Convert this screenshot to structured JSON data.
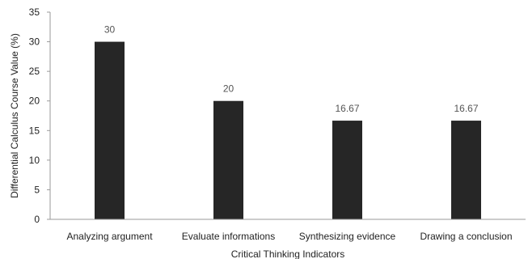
{
  "chart_data": {
    "type": "bar",
    "title": "",
    "xlabel": "Critical Thinking Indicators",
    "ylabel": "Differential Calculus Course Value (%)",
    "categories": [
      "Analyzing argument",
      "Evaluate informations",
      "Synthesizing evidence",
      "Drawing a conclusion"
    ],
    "values": [
      30,
      20,
      16.67,
      16.67
    ],
    "data_labels": [
      "30",
      "20",
      "16.67",
      "16.67"
    ],
    "ylim": [
      0,
      35
    ],
    "yticks": [
      0,
      5,
      10,
      15,
      20,
      25,
      30,
      35
    ],
    "grid": false,
    "legend": "none",
    "bar_color": "#262626"
  }
}
